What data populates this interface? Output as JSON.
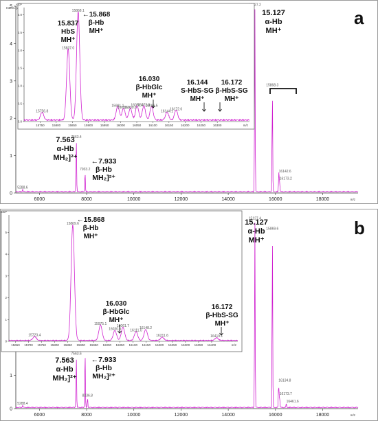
{
  "chart_data": [
    {
      "type": "line",
      "panel": "a",
      "panel_label": "a",
      "ylabel": "Intens. [a.u.]",
      "xlabel": "m/z",
      "y_multiplier": "x10⁴",
      "xlim": [
        5000,
        19500
      ],
      "ylim": [
        0,
        5
      ],
      "x_ticks": [
        "6000",
        "8000",
        "10000",
        "12000",
        "14000",
        "16000",
        "18000"
      ],
      "y_ticks": [
        "0",
        "1",
        "2",
        "3",
        "4",
        "5"
      ],
      "peaks": [
        {
          "x": 5288.6,
          "y": 0.06,
          "label": "5288.6"
        },
        {
          "x": 7563.4,
          "y": 1.42,
          "label": "7563.4"
        },
        {
          "x": 7933.2,
          "y": 0.55,
          "label": "7933.2"
        },
        {
          "x": 15127.2,
          "y": 4.95,
          "label": "15127.2"
        },
        {
          "x": 15868.3,
          "y": 2.8,
          "label": "15868.3"
        },
        {
          "x": 16142.6,
          "y": 0.5,
          "label": "16142.6"
        },
        {
          "x": 16173.2,
          "y": 0.3,
          "label": "16173.2"
        }
      ],
      "annotations": [
        {
          "lines": [
            "7.563",
            "α-Hb",
            "MH₂]²⁺"
          ]
        },
        {
          "lines": [
            "←7.933",
            "β-Hb",
            "MH₂]²⁺"
          ]
        },
        {
          "lines": [
            "15.127",
            "α-Hb",
            "MH⁺"
          ]
        }
      ],
      "inset": {
        "xlim": [
          15700,
          16400
        ],
        "ylim": [
          0,
          3.2
        ],
        "x_ticks": [
          "15750",
          "15800",
          "15850",
          "15900",
          "15950",
          "16000",
          "16050",
          "16100",
          "16150",
          "16200",
          "16250",
          "16300"
        ],
        "y_ticks": [
          "0.0",
          "0.5",
          "1.0",
          "1.5",
          "2.0",
          "2.5",
          "3.0"
        ],
        "xlabel": "m/z",
        "y_multiplier": "x10⁴",
        "peaks": [
          {
            "x": 15756,
            "y": 0.22,
            "label": "15756.8"
          },
          {
            "x": 15837,
            "y": 2.0,
            "label": "15837.0"
          },
          {
            "x": 15868,
            "y": 3.05,
            "label": "15868.1"
          },
          {
            "x": 15991,
            "y": 0.38,
            "label": "15991.1"
          },
          {
            "x": 16009,
            "y": 0.33,
            "label": "16009.0"
          },
          {
            "x": 16030,
            "y": 0.33,
            "label": "16030.6"
          },
          {
            "x": 16051,
            "y": 0.4,
            "label": "16051.4"
          },
          {
            "x": 16072,
            "y": 0.4,
            "label": "16072.8"
          },
          {
            "x": 16096,
            "y": 0.38,
            "label": "16096.5"
          },
          {
            "x": 16144,
            "y": 0.22,
            "label": "16144.1"
          },
          {
            "x": 16172,
            "y": 0.28,
            "label": "16172.6"
          }
        ],
        "annotations": [
          {
            "lines": [
              "15.837",
              "HbS",
              "MH⁺"
            ]
          },
          {
            "lines": [
              "←15.868",
              "β-Hb",
              "MH⁺"
            ]
          },
          {
            "lines": [
              "16.030",
              "β-HbGlc",
              "MH⁺"
            ]
          },
          {
            "lines": [
              "16.144",
              "S-HbS-SG",
              "MH⁺"
            ]
          },
          {
            "lines": [
              "16.172",
              "β-HbS-SG",
              "MH⁺"
            ]
          }
        ]
      }
    },
    {
      "type": "line",
      "panel": "b",
      "panel_label": "b",
      "xlabel": "m/z",
      "y_multiplier": "x10⁴",
      "xlim": [
        5000,
        19500
      ],
      "ylim": [
        0,
        5.8
      ],
      "x_ticks": [
        "6000",
        "8000",
        "10000",
        "12000",
        "14000",
        "16000",
        "18000"
      ],
      "y_ticks": [
        "0",
        "1",
        "2",
        "3",
        "4",
        "5"
      ],
      "peaks": [
        {
          "x": 5288.4,
          "y": 0.06,
          "label": "5288.4"
        },
        {
          "x": 7563.6,
          "y": 1.55,
          "label": "7563.6"
        },
        {
          "x": 7934.1,
          "y": 1.75,
          "label": "7934.1"
        },
        {
          "x": 8036.8,
          "y": 0.3,
          "label": "8036.8"
        },
        {
          "x": 15127.4,
          "y": 5.6,
          "label": "15127.4"
        },
        {
          "x": 15869.6,
          "y": 5.3,
          "label": "15869.6"
        },
        {
          "x": 16134.8,
          "y": 0.75,
          "label": "16134.8"
        },
        {
          "x": 16173.7,
          "y": 0.35,
          "label": "16173.7"
        },
        {
          "x": 16461.6,
          "y": 0.12,
          "label": "16461.6"
        }
      ],
      "annotations": [
        {
          "lines": [
            "7.563",
            "α-Hb",
            "MH₂]²⁺"
          ]
        },
        {
          "lines": [
            "←7.933",
            "β-Hb",
            "MH₂]²⁺"
          ]
        },
        {
          "lines": [
            "15.127",
            "α-Hb",
            "MH⁺"
          ]
        }
      ],
      "inset": {
        "xlim": [
          15625,
          16500
        ],
        "ylim": [
          0,
          5.8
        ],
        "x_ticks": [
          "15650",
          "15700",
          "15750",
          "15800",
          "15850",
          "15900",
          "15950",
          "16000",
          "16050",
          "16100",
          "16150",
          "16200",
          "16250",
          "16300",
          "16350",
          "16400"
        ],
        "y_ticks": [
          "0",
          "1",
          "2",
          "3",
          "4",
          "5"
        ],
        "xlabel": "m/z",
        "y_multiplier": "x10⁴",
        "peaks": [
          {
            "x": 15723,
            "y": 0.18,
            "label": "15723.4"
          },
          {
            "x": 15869,
            "y": 5.3,
            "label": "15869.6"
          },
          {
            "x": 15975,
            "y": 0.7,
            "label": "15975.1"
          },
          {
            "x": 16030,
            "y": 0.45,
            "label": "16030.6"
          },
          {
            "x": 16061,
            "y": 0.6,
            "label": "16061.7"
          },
          {
            "x": 16111,
            "y": 0.4,
            "label": "16111.0"
          },
          {
            "x": 16148,
            "y": 0.5,
            "label": "16148.2"
          },
          {
            "x": 16211,
            "y": 0.15,
            "label": "16211.6"
          },
          {
            "x": 16419,
            "y": 0.12,
            "label": "16419.1"
          }
        ],
        "annotations": [
          {
            "lines": [
              "←15.868",
              "β-Hb",
              "MH⁺"
            ]
          },
          {
            "lines": [
              "16.030",
              "β-HbGlc",
              "MH⁺"
            ]
          },
          {
            "lines": [
              "16.172",
              "β-HbS-SG",
              "MH⁺"
            ]
          }
        ]
      }
    }
  ],
  "colors": {
    "spectrum": "#d020d0",
    "axis": "#333333",
    "text": "#111111"
  }
}
